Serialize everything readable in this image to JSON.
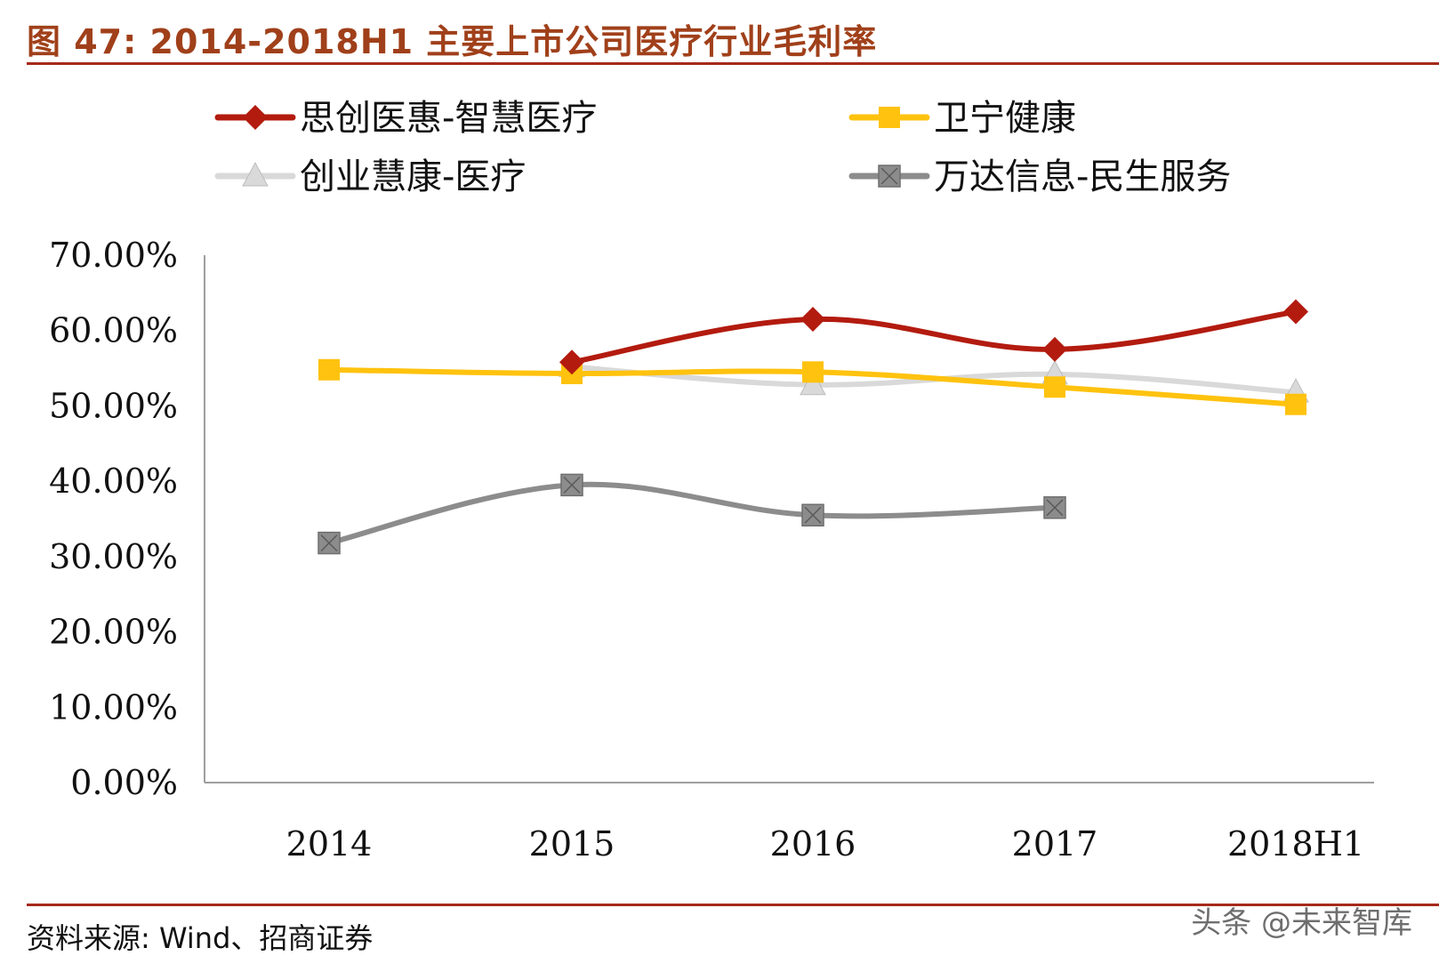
{
  "figure_title": "图 47: 2014-2018H1 主要上市公司医疗行业毛利率",
  "source": "资料来源: Wind、招商证券",
  "watermark": "头条 @未来智库",
  "chart_data": {
    "type": "line",
    "categories": [
      "2014",
      "2015",
      "2016",
      "2017",
      "2018H1"
    ],
    "ylim": [
      0,
      70
    ],
    "yticks": [
      "0.00%",
      "10.00%",
      "20.00%",
      "30.00%",
      "40.00%",
      "50.00%",
      "60.00%",
      "70.00%"
    ],
    "legend_position": "top",
    "grid": false,
    "series": [
      {
        "name": "思创医惠-智慧医疗",
        "color": "#b31b0f",
        "marker": "diamond",
        "values": [
          null,
          55.8,
          61.5,
          57.5,
          62.5
        ]
      },
      {
        "name": "卫宁健康",
        "color": "#ffc20e",
        "marker": "square",
        "values": [
          54.8,
          54.3,
          54.5,
          52.5,
          50.2
        ]
      },
      {
        "name": "创业慧康-医疗",
        "color": "#d9d9d9",
        "marker": "triangle",
        "values": [
          null,
          55.2,
          52.8,
          54.2,
          51.8
        ]
      },
      {
        "name": "万达信息-民生服务",
        "color": "#8c8c8c",
        "marker": "square-x",
        "values": [
          31.8,
          39.5,
          35.5,
          36.5,
          null
        ]
      }
    ]
  }
}
